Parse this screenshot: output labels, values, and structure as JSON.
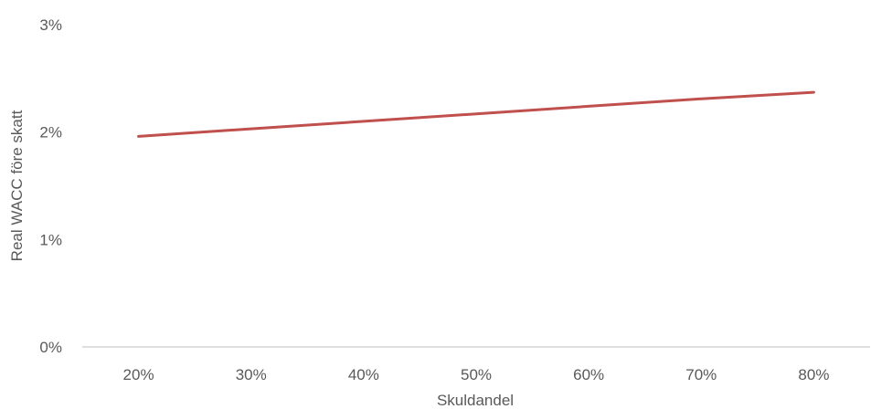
{
  "chart_data": {
    "type": "line",
    "xlabel": "Skuldandel",
    "ylabel": "Real WACC före skatt",
    "x": [
      20,
      30,
      40,
      50,
      60,
      70,
      80
    ],
    "x_tick_labels": [
      "20%",
      "30%",
      "40%",
      "50%",
      "60%",
      "70%",
      "80%"
    ],
    "y_tick_labels": [
      "0%",
      "1%",
      "2%",
      "3%"
    ],
    "ylim": [
      0,
      3
    ],
    "xlim": [
      15,
      85
    ],
    "grid": false,
    "series": [
      {
        "values": [
          1.96,
          2.03,
          2.1,
          2.17,
          2.24,
          2.31,
          2.37
        ],
        "color": "#c0504d"
      }
    ],
    "colors": {
      "axis": "#bfbfbf",
      "text": "#595959"
    }
  }
}
